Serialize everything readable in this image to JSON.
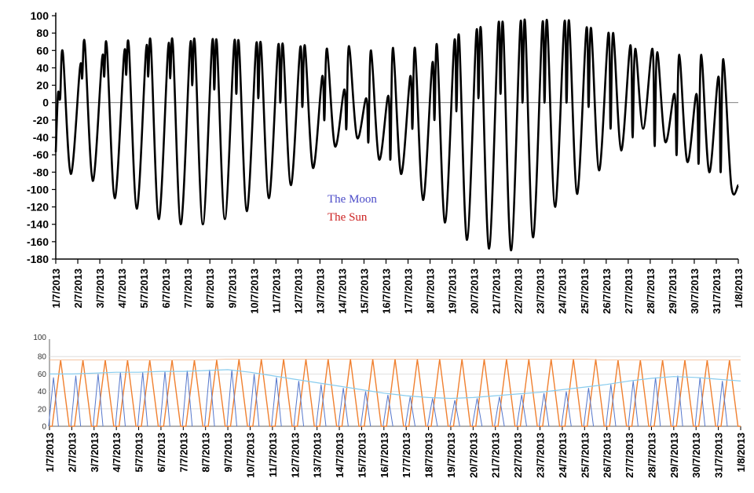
{
  "header_text": "",
  "chart_data": [
    {
      "type": "line",
      "title": "",
      "ylim": [
        -180,
        100
      ],
      "yticks": [
        100,
        80,
        60,
        40,
        20,
        0,
        -20,
        -40,
        -60,
        -80,
        -100,
        -120,
        -140,
        -160,
        -180
      ],
      "x_start": "1/7/2013",
      "x_end": "1/8/2013",
      "xticks": [
        "1/7/2013",
        "2/7/2013",
        "3/7/2013",
        "4/7/2013",
        "5/7/2013",
        "6/7/2013",
        "7/7/2013",
        "8/7/2013",
        "9/7/2013",
        "10/7/2013",
        "11/7/2013",
        "12/7/2013",
        "13/7/2013",
        "14/7/2013",
        "15/7/2013",
        "16/7/2013",
        "17/7/2013",
        "18/7/2013",
        "19/7/2013",
        "20/7/2013",
        "21/7/2013",
        "22/7/2013",
        "23/7/2013",
        "24/7/2013",
        "25/7/2013",
        "26/7/2013",
        "27/7/2013",
        "28/7/2013",
        "29/7/2013",
        "30/7/2013",
        "31/7/2013",
        "1/8/2013"
      ],
      "legend": [
        "The Moon",
        "The Sun"
      ],
      "legend_colors": [
        "#4b4bc8",
        "#cc2222"
      ],
      "line_color": "#000000",
      "tidal_peaks": {
        "dates": [
          "1/7/2013",
          "2/7/2013",
          "3/7/2013",
          "4/7/2013",
          "5/7/2013",
          "6/7/2013",
          "7/7/2013",
          "8/7/2013",
          "9/7/2013",
          "10/7/2013",
          "11/7/2013",
          "12/7/2013",
          "13/7/2013",
          "14/7/2013",
          "15/7/2013",
          "16/7/2013",
          "17/7/2013",
          "18/7/2013",
          "19/7/2013",
          "20/7/2013",
          "21/7/2013",
          "22/7/2013",
          "23/7/2013",
          "24/7/2013",
          "25/7/2013",
          "26/7/2013",
          "27/7/2013",
          "28/7/2013",
          "29/7/2013",
          "30/7/2013",
          "31/7/2013",
          "1/8/2013"
        ],
        "high_water_1": [
          10,
          40,
          50,
          55,
          60,
          62,
          65,
          68,
          68,
          66,
          65,
          63,
          30,
          15,
          5,
          8,
          30,
          45,
          70,
          80,
          88,
          90,
          90,
          92,
          85,
          80,
          66,
          62,
          10,
          10,
          30,
          50
        ],
        "high_water_2": [
          58,
          68,
          65,
          65,
          67,
          67,
          68,
          68,
          68,
          67,
          66,
          65,
          62,
          65,
          60,
          63,
          62,
          65,
          75,
          82,
          88,
          92,
          93,
          93,
          85,
          80,
          62,
          58,
          55,
          55,
          50,
          50
        ],
        "mid_trough": [
          5,
          28,
          30,
          32,
          30,
          28,
          20,
          15,
          10,
          5,
          0,
          -5,
          -20,
          -30,
          -45,
          -65,
          -30,
          -20,
          -10,
          5,
          10,
          0,
          0,
          0,
          -5,
          -30,
          -40,
          -50,
          -60,
          -70,
          -80,
          -90
        ],
        "low_water": [
          -60,
          -82,
          -90,
          -110,
          -122,
          -134,
          -140,
          -140,
          -134,
          -125,
          -110,
          -95,
          -75,
          -50,
          -40,
          -65,
          -82,
          -112,
          -138,
          -158,
          -168,
          -170,
          -155,
          -120,
          -105,
          -78,
          -55,
          -30,
          -45,
          -68,
          -80,
          -95
        ]
      }
    },
    {
      "type": "line",
      "title": "",
      "ylim": [
        0,
        100
      ],
      "yticks": [
        80,
        60,
        40,
        20,
        0
      ],
      "yticks_partial": [
        "100"
      ],
      "xticks": [
        "1/7/2013",
        "2/7/2013",
        "3/7/2013",
        "4/7/2013",
        "5/7/2013",
        "6/7/2013",
        "7/7/2013",
        "8/7/2013",
        "9/7/2013",
        "10/7/2013",
        "11/7/2013",
        "12/7/2013",
        "13/7/2013",
        "14/7/2013",
        "15/7/2013",
        "16/7/2013",
        "17/7/2013",
        "18/7/2013",
        "19/7/2013",
        "20/7/2013",
        "21/7/2013",
        "22/7/2013",
        "23/7/2013",
        "24/7/2013",
        "25/7/2013",
        "26/7/2013",
        "27/7/2013",
        "28/7/2013",
        "29/7/2013",
        "30/7/2013",
        "31/7/2013",
        "1/8/2013"
      ],
      "series": [
        {
          "color": "#f08030",
          "values": [
            76,
            76,
            76,
            76,
            76,
            76,
            76,
            76,
            77,
            77,
            77,
            77,
            77,
            77,
            77,
            77,
            77,
            77,
            77,
            77,
            77,
            77,
            77,
            77,
            77,
            76,
            76,
            76,
            76,
            76,
            76,
            76
          ]
        },
        {
          "color": "#5577cc",
          "values": [
            56,
            58,
            60,
            62,
            62,
            63,
            64,
            65,
            65,
            60,
            56,
            52,
            48,
            44,
            40,
            36,
            34,
            32,
            30,
            32,
            34,
            36,
            38,
            40,
            44,
            48,
            52,
            56,
            58,
            56,
            52,
            0
          ]
        },
        {
          "color": "#88ccee",
          "values": [
            60,
            60,
            61,
            62,
            62,
            63,
            63,
            64,
            65,
            62,
            58,
            54,
            50,
            46,
            42,
            38,
            35,
            33,
            32,
            33,
            35,
            37,
            39,
            42,
            45,
            48,
            52,
            55,
            57,
            56,
            54,
            52
          ]
        }
      ]
    }
  ]
}
